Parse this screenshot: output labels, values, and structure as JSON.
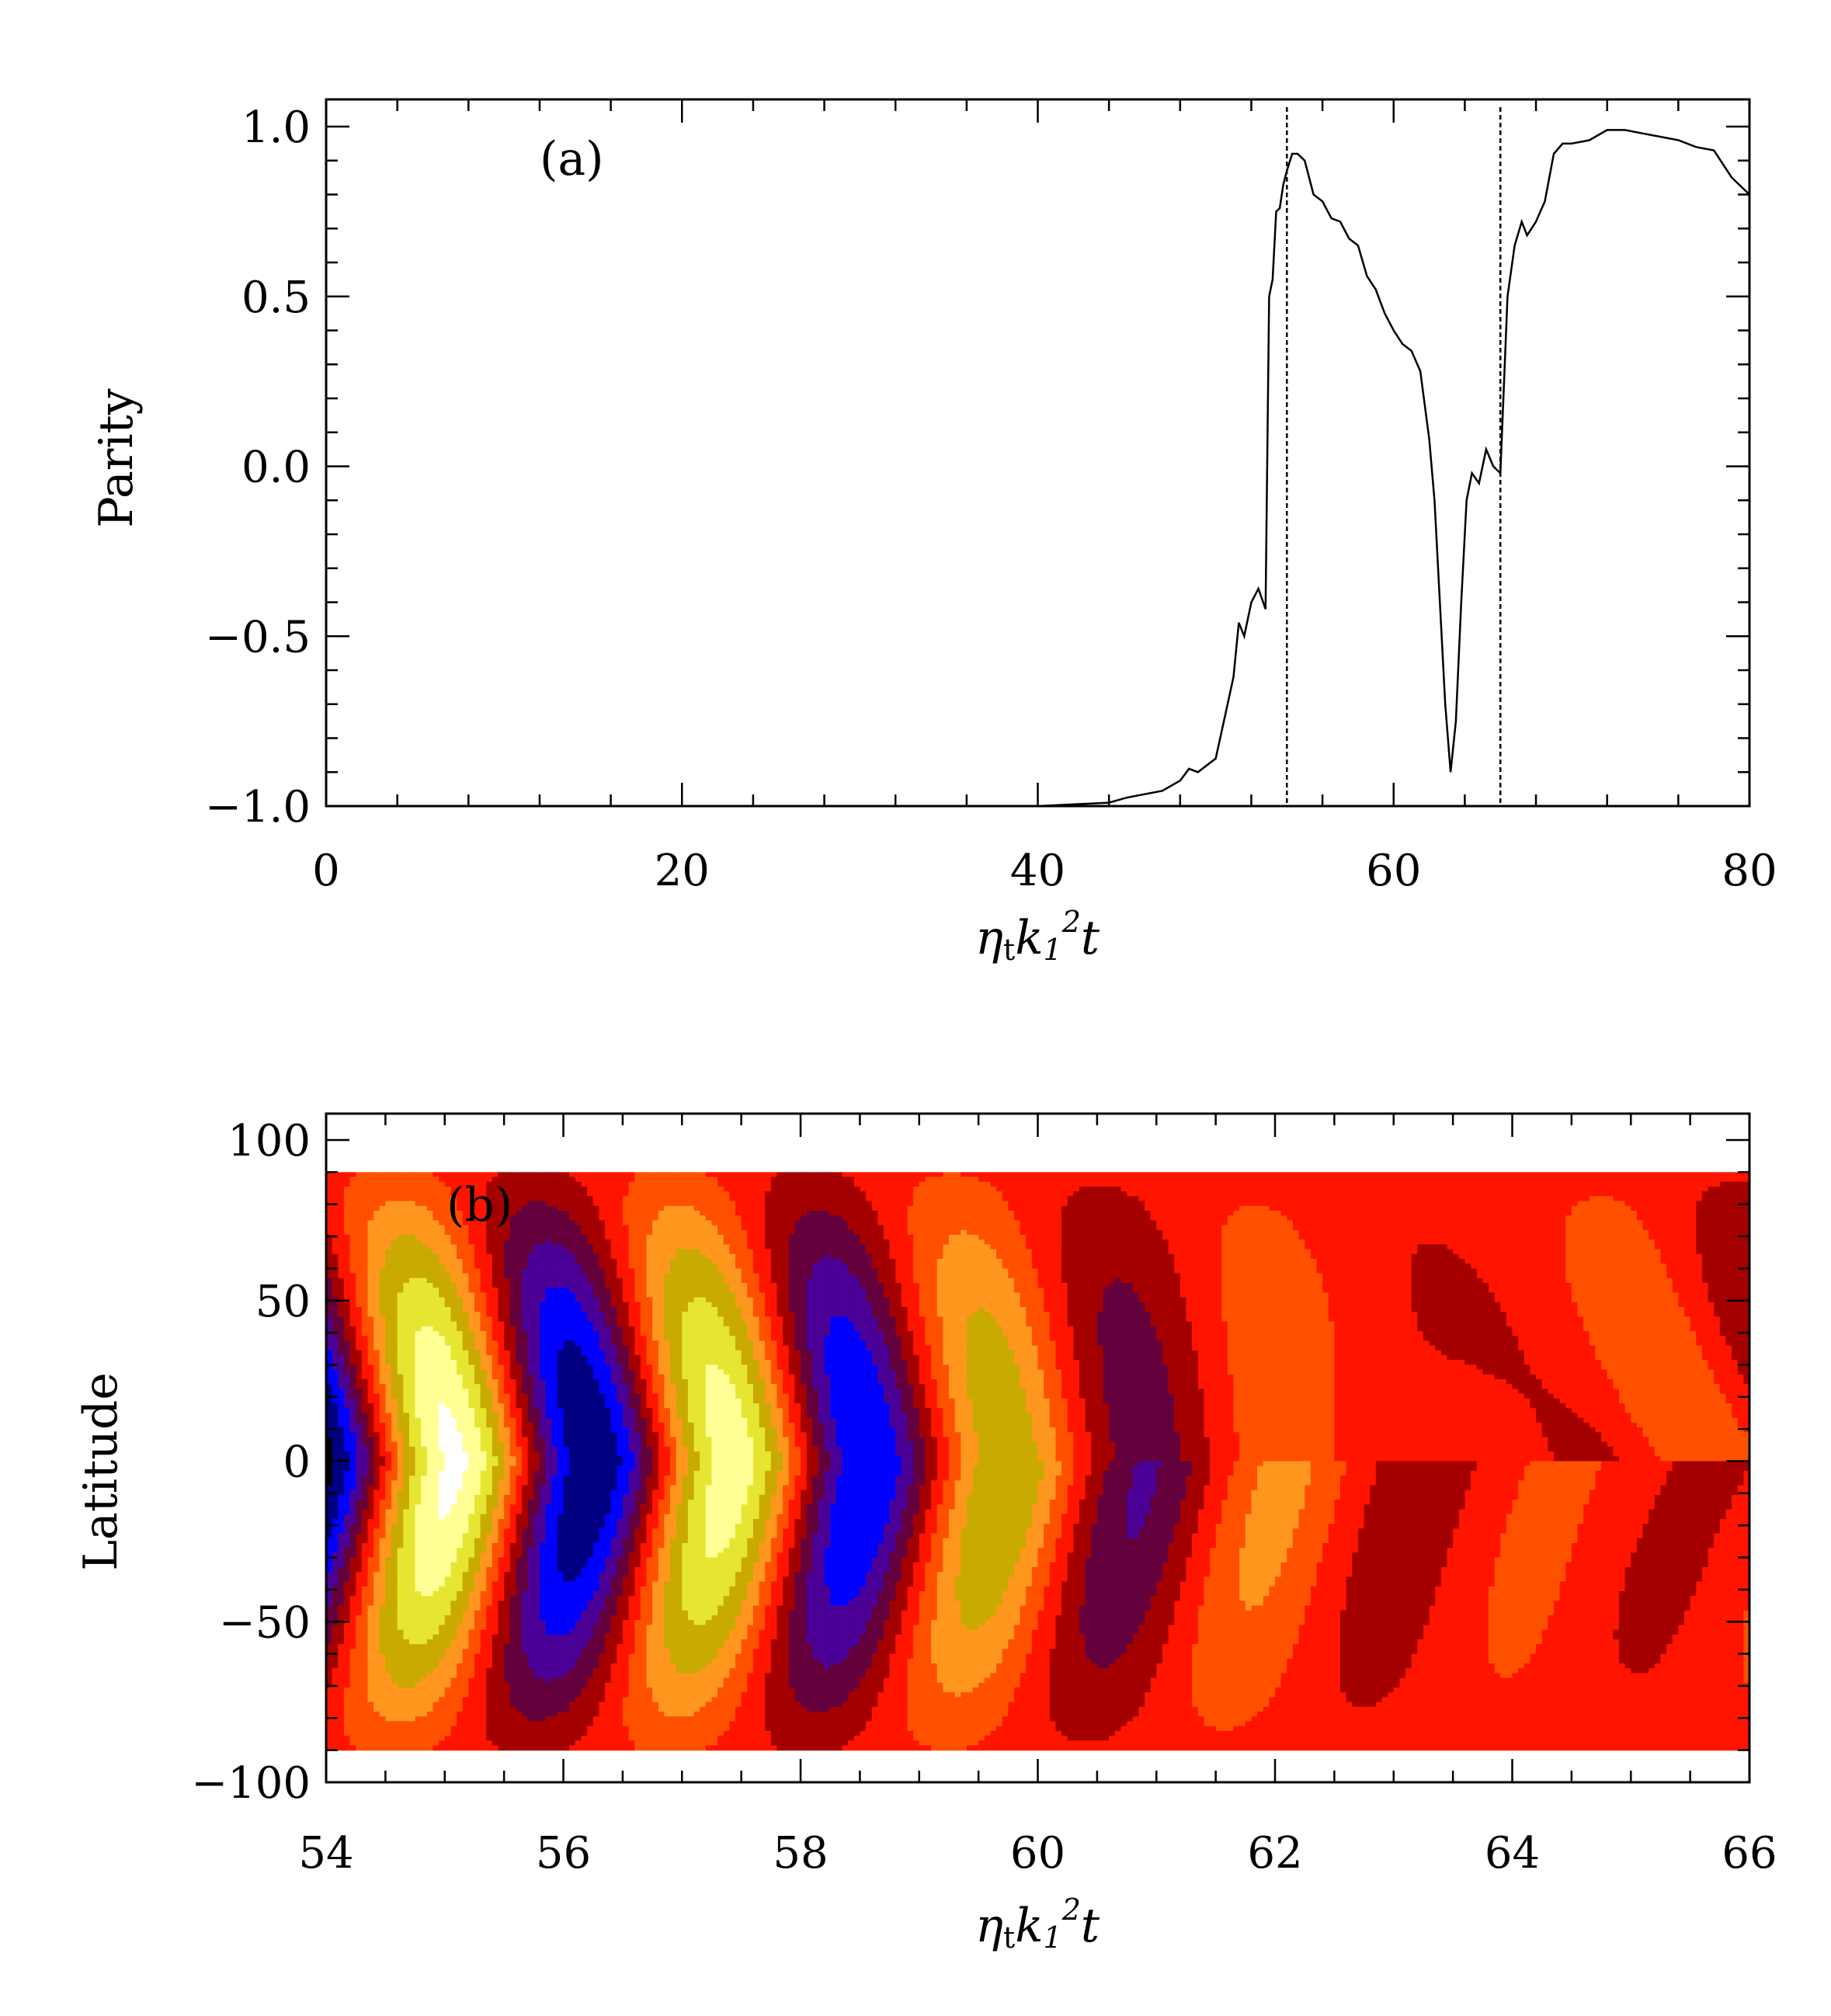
{
  "chart_data": [
    {
      "type": "line",
      "panel_label": "(a)",
      "xlabel": "η_t k_1^2 t",
      "xlabel_parts": {
        "eta": "η",
        "eta_sub": "t",
        "k": "k",
        "k_sub": "1",
        "k_sup": "2",
        "t": "t"
      },
      "ylabel": "Parity",
      "xlim": [
        0,
        80
      ],
      "ylim": [
        -1.0,
        1.0
      ],
      "xticks": [
        "0",
        "20",
        "40",
        "60",
        "80"
      ],
      "yticks": [
        "1.0",
        "0.5",
        "0.0",
        "−0.5",
        "−1.0"
      ],
      "vertical_markers": [
        54,
        66
      ],
      "series": [
        {
          "x": [
            0,
            40,
            42,
            44,
            45,
            46,
            47,
            48,
            48.5,
            49,
            50,
            50.5,
            51,
            51.3,
            51.6,
            52,
            52.4,
            52.8,
            53,
            53.2,
            53.4,
            53.6,
            53.8,
            54,
            54.3,
            54.6,
            55,
            55.5,
            56,
            56.5,
            57,
            57.5,
            58,
            58.5,
            59,
            59.5,
            60,
            60.5,
            61,
            61.5,
            62,
            62.3,
            62.6,
            62.9,
            63.2,
            63.5,
            63.8,
            64.1,
            64.4,
            64.8,
            65.2,
            65.6,
            66,
            66.4,
            66.8,
            67.2,
            67.5,
            68,
            68.5,
            69,
            69.5,
            70,
            71,
            72,
            73,
            74,
            75,
            76,
            77,
            78,
            79,
            80
          ],
          "y": [
            -1.0,
            -1.0,
            -0.995,
            -0.99,
            -0.975,
            -0.965,
            -0.955,
            -0.925,
            -0.89,
            -0.9,
            -0.86,
            -0.74,
            -0.62,
            -0.46,
            -0.5,
            -0.4,
            -0.36,
            -0.42,
            0.5,
            0.55,
            0.75,
            0.76,
            0.83,
            0.87,
            0.92,
            0.92,
            0.9,
            0.8,
            0.78,
            0.73,
            0.72,
            0.67,
            0.65,
            0.56,
            0.52,
            0.45,
            0.4,
            0.36,
            0.34,
            0.28,
            0.08,
            -0.1,
            -0.4,
            -0.7,
            -0.9,
            -0.75,
            -0.4,
            -0.1,
            -0.02,
            -0.05,
            0.05,
            0.0,
            -0.02,
            0.5,
            0.65,
            0.72,
            0.68,
            0.72,
            0.78,
            0.92,
            0.95,
            0.95,
            0.96,
            0.99,
            0.99,
            0.98,
            0.97,
            0.96,
            0.94,
            0.93,
            0.85,
            0.8
          ]
        }
      ]
    },
    {
      "type": "heatmap",
      "panel_label": "(b)",
      "xlabel": "η_t k_1^2 t",
      "xlabel_parts": {
        "eta": "η",
        "eta_sub": "t",
        "k": "k",
        "k_sub": "1",
        "k_sup": "2",
        "t": "t"
      },
      "ylabel": "Latitude",
      "xlim": [
        54,
        66
      ],
      "ylim": [
        -100,
        100
      ],
      "data_lat_range": [
        -90,
        90
      ],
      "xticks": [
        "54",
        "56",
        "58",
        "60",
        "62",
        "64",
        "66"
      ],
      "yticks": [
        "100",
        "50",
        "0",
        "−50",
        "−100"
      ],
      "colormap": [
        "#000000",
        "#000080",
        "#0000ff",
        "#4b0096",
        "#64003c",
        "#a50000",
        "#ff1400",
        "#ff5000",
        "#ff961e",
        "#c8aa00",
        "#e6e632",
        "#ffff96",
        "#ffffff"
      ]
    }
  ]
}
